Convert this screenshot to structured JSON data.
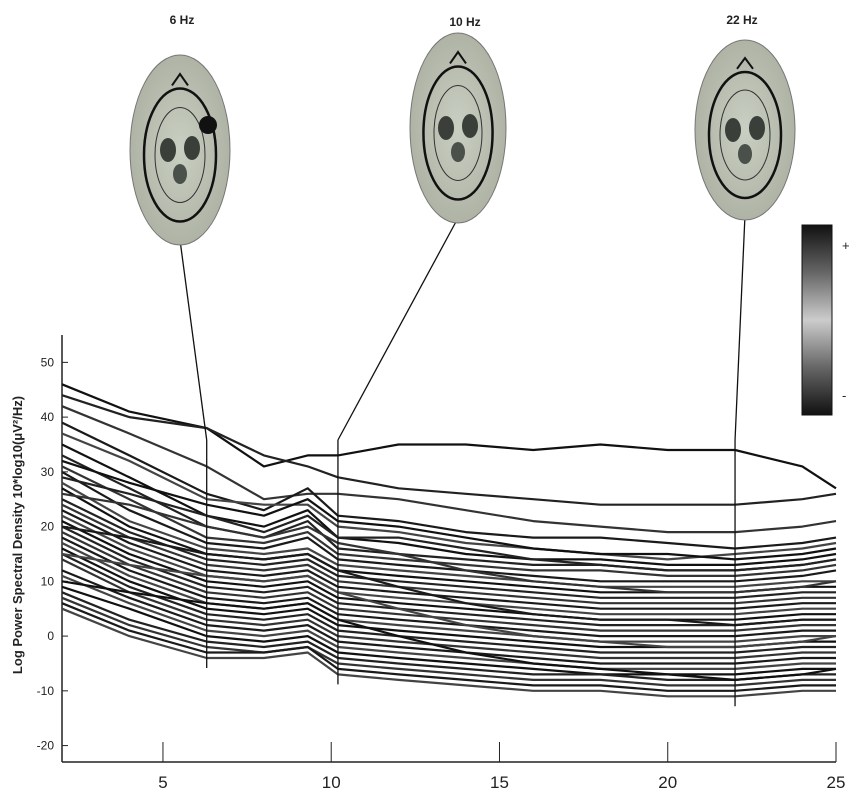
{
  "chart_data": {
    "type": "line",
    "ylabel": "Log Power Spectral Density 10*log10(μV²/Hz)",
    "xlim": [
      2,
      25
    ],
    "ylim": [
      -23,
      55
    ],
    "x_ticks": [
      5,
      10,
      15,
      20,
      25
    ],
    "y_ticks": [
      50,
      40,
      30,
      20,
      10,
      0,
      -10,
      -20
    ],
    "x": [
      2,
      4,
      6.3,
      8,
      9.3,
      10.2,
      12,
      14,
      16,
      18,
      20,
      22,
      24,
      25
    ],
    "series": [
      {
        "values": [
          46,
          41,
          38,
          31,
          33,
          33,
          35,
          35,
          34,
          35,
          34,
          34,
          31,
          27
        ]
      },
      {
        "values": [
          44,
          40,
          38,
          33,
          31,
          29,
          27,
          26,
          25,
          24,
          24,
          24,
          25,
          26
        ]
      },
      {
        "values": [
          42,
          37,
          31,
          25,
          26,
          26,
          25,
          23,
          21,
          20,
          19,
          19,
          20,
          21
        ]
      },
      {
        "values": [
          39,
          33,
          26,
          23,
          27,
          22,
          21,
          19,
          18,
          18,
          17,
          16,
          17,
          18
        ]
      },
      {
        "values": [
          37,
          32,
          25,
          24,
          24,
          20,
          19,
          17,
          16,
          15,
          14,
          15,
          16,
          17
        ]
      },
      {
        "values": [
          35,
          29,
          22,
          20,
          23,
          18,
          17,
          15,
          14,
          14,
          13,
          13,
          14,
          15
        ]
      },
      {
        "values": [
          33,
          27,
          20,
          18,
          21,
          16,
          15,
          14,
          13,
          13,
          12,
          12,
          13,
          14
        ]
      },
      {
        "values": [
          31,
          25,
          18,
          17,
          19,
          15,
          14,
          13,
          12,
          12,
          11,
          11,
          12,
          13
        ]
      },
      {
        "values": [
          30,
          23,
          17,
          16,
          18,
          14,
          13,
          12,
          11,
          10,
          10,
          10,
          11,
          12
        ]
      },
      {
        "values": [
          28,
          21,
          16,
          15,
          16,
          13,
          12,
          11,
          10,
          9,
          9,
          9,
          10,
          10
        ]
      },
      {
        "values": [
          27,
          20,
          15,
          14,
          15,
          12,
          11,
          10,
          9,
          8,
          8,
          8,
          9,
          9
        ]
      },
      {
        "values": [
          25,
          19,
          14,
          13,
          14,
          11,
          10,
          9,
          8,
          7,
          7,
          7,
          8,
          8
        ]
      },
      {
        "values": [
          24,
          18,
          13,
          12,
          13,
          10,
          9,
          8,
          7,
          6,
          6,
          6,
          7,
          7
        ]
      },
      {
        "values": [
          23,
          17,
          12,
          11,
          12,
          9,
          8,
          7,
          6,
          5,
          5,
          5,
          6,
          6
        ]
      },
      {
        "values": [
          22,
          16,
          11,
          10,
          11,
          8,
          7,
          6,
          5,
          4,
          4,
          4,
          5,
          5
        ]
      },
      {
        "values": [
          21,
          15,
          10,
          9,
          10,
          7,
          6,
          5,
          4,
          3,
          3,
          3,
          4,
          4
        ]
      },
      {
        "values": [
          20,
          14,
          9,
          8,
          9,
          6,
          5,
          4,
          3,
          2,
          2,
          2,
          3,
          3
        ]
      },
      {
        "values": [
          19,
          13,
          8,
          7,
          8,
          5,
          4,
          3,
          2,
          1,
          1,
          1,
          2,
          2
        ]
      },
      {
        "values": [
          18,
          12,
          7,
          6,
          7,
          4,
          3,
          2,
          1,
          0,
          0,
          0,
          1,
          1
        ]
      },
      {
        "values": [
          17,
          11,
          6,
          5,
          6,
          3,
          2,
          1,
          0,
          -1,
          -1,
          -1,
          0,
          0
        ]
      },
      {
        "values": [
          16,
          10,
          5,
          4,
          5,
          2,
          1,
          0,
          -1,
          -2,
          -2,
          -2,
          -1,
          -1
        ]
      },
      {
        "values": [
          15,
          9,
          4,
          3,
          4,
          1,
          0,
          -1,
          -2,
          -3,
          -3,
          -3,
          -2,
          -2
        ]
      },
      {
        "values": [
          14,
          8,
          3,
          2,
          3,
          0,
          -1,
          -2,
          -3,
          -4,
          -4,
          -4,
          -3,
          -3
        ]
      },
      {
        "values": [
          12,
          7,
          2,
          1,
          2,
          -1,
          -2,
          -3,
          -4,
          -5,
          -5,
          -5,
          -4,
          -4
        ]
      },
      {
        "values": [
          11,
          6,
          1,
          0,
          1,
          -2,
          -3,
          -4,
          -5,
          -6,
          -6,
          -6,
          -5,
          -5
        ]
      },
      {
        "values": [
          9,
          5,
          0,
          -1,
          0,
          -3,
          -4,
          -5,
          -6,
          -7,
          -7,
          -7,
          -6,
          -6
        ]
      },
      {
        "values": [
          8,
          3,
          -1,
          -2,
          -1,
          -4,
          -5,
          -6,
          -7,
          -7,
          -8,
          -8,
          -7,
          -7
        ]
      },
      {
        "values": [
          7,
          2,
          -2,
          -3,
          -2,
          -5,
          -6,
          -7,
          -8,
          -8,
          -9,
          -9,
          -8,
          -8
        ]
      },
      {
        "values": [
          6,
          1,
          -3,
          -3,
          -2,
          -6,
          -7,
          -8,
          -9,
          -9,
          -10,
          -10,
          -9,
          -9
        ]
      },
      {
        "values": [
          5,
          0,
          -4,
          -4,
          -3,
          -7,
          -8,
          -9,
          -10,
          -10,
          -11,
          -11,
          -10,
          -10
        ]
      },
      {
        "values": [
          32,
          28,
          24,
          22,
          25,
          21,
          20,
          18,
          16,
          15,
          15,
          14,
          15,
          16
        ]
      },
      {
        "values": [
          29,
          26,
          22,
          19,
          22,
          18,
          18,
          16,
          14,
          13,
          12,
          12,
          13,
          14
        ]
      },
      {
        "values": [
          26,
          24,
          20,
          18,
          20,
          17,
          15,
          12,
          10,
          9,
          8,
          8,
          9,
          10
        ]
      },
      {
        "values": [
          20,
          18,
          15,
          14,
          15,
          12,
          9,
          6,
          4,
          3,
          3,
          2,
          3,
          3
        ]
      },
      {
        "values": [
          15,
          13,
          11,
          10,
          11,
          8,
          5,
          2,
          0,
          -1,
          -2,
          -2,
          -1,
          0
        ]
      },
      {
        "values": [
          10,
          8,
          6,
          5,
          6,
          3,
          0,
          -3,
          -5,
          -6,
          -7,
          -8,
          -7,
          -6
        ]
      }
    ],
    "markers": [
      {
        "freq": 6.3,
        "label": "6 Hz"
      },
      {
        "freq": 10.2,
        "label": "10 Hz"
      },
      {
        "freq": 22,
        "label": "22 Hz"
      }
    ],
    "colorbar": {
      "top_label": "+",
      "bottom_label": "-"
    }
  }
}
